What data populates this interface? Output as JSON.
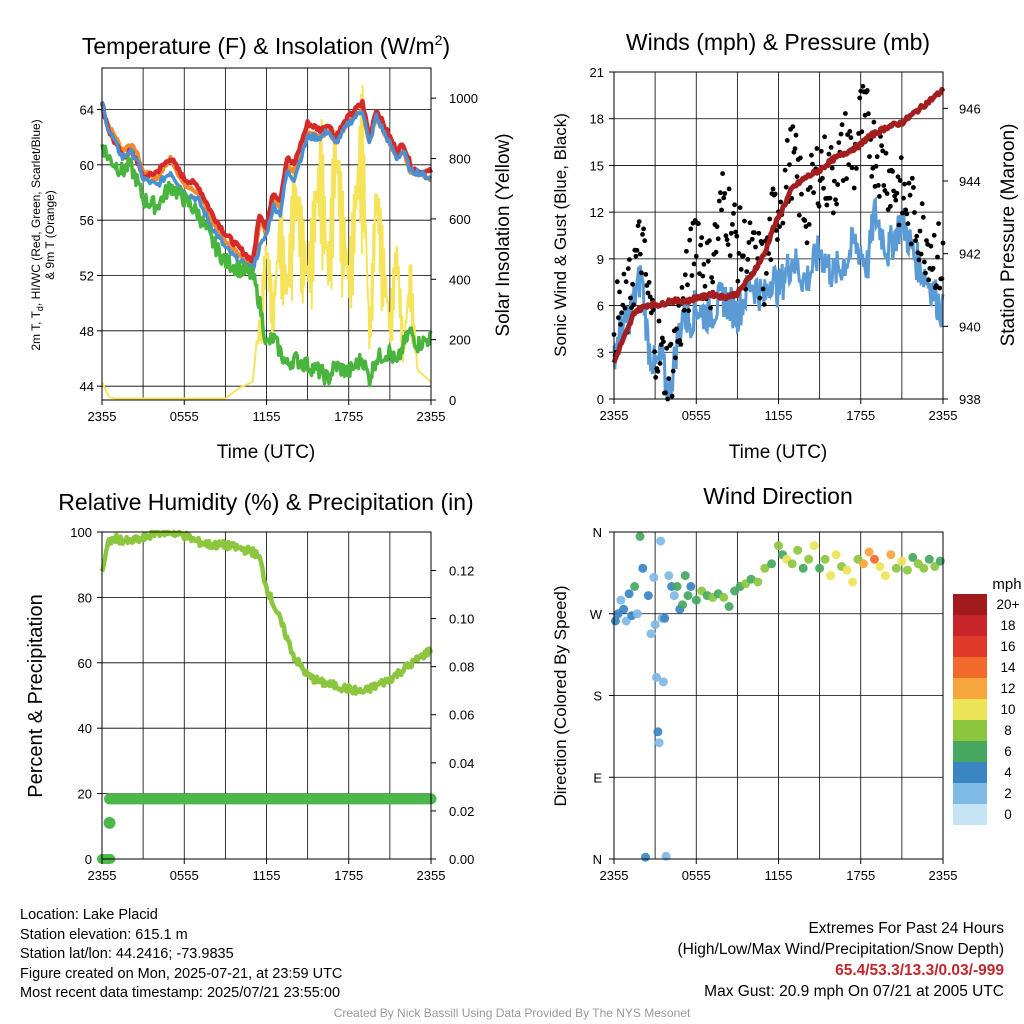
{
  "panels": {
    "temperature": {
      "title": "Temperature (F) & Insolation (W/m",
      "title_sup": "2",
      "title_end": ")",
      "ylabel": "2m T, T",
      "ylabel_sub": "d",
      "ylabel_rest": ", HI/WC (Red, Green, Scarlet/Blue)",
      "ylabel_line2": "& 9m T (Orange)",
      "y2label": "Solar Insolation (Yellow)",
      "xlabel": "Time (UTC)"
    },
    "winds": {
      "title": "Winds (mph) & Pressure (mb)",
      "ylabel": "Sonic Wind & Gust (Blue, Black)",
      "y2label": "Station Pressure (Maroon)",
      "xlabel": "Time (UTC)"
    },
    "humidity": {
      "title": "Relative Humidity (%) & Precipitation (in)",
      "ylabel": "Percent & Precipitation"
    },
    "direction": {
      "title": "Wind Direction",
      "ylabel": "Direction (Colored By Speed)",
      "legend_title": "mph"
    }
  },
  "info": {
    "location": "Location: Lake Placid",
    "elevation": "Station elevation: 615.1 m",
    "latlon": "Station lat/lon: 44.2416; -73.9835",
    "created": "Figure created on Mon, 2025-07-21, at 23:59 UTC",
    "recent": "Most recent data timestamp: 2025/07/21 23:55:00"
  },
  "extremes": {
    "title": "Extremes For Past 24 Hours",
    "subtitle": "(High/Low/Max Wind/Precipitation/Snow Depth)",
    "values": "65.4/53.3/13.3/0.03/-999",
    "gust": "Max Gust: 20.9 mph On 07/21 at 2005 UTC"
  },
  "credit": "Created By Nick Bassill Using Data Provided By The NYS Mesonet",
  "colors": {
    "temp_red": "#d42a2a",
    "dewpoint_green": "#49b43e",
    "heat_index_blue": "#4a90d0",
    "temp_9m_orange": "#f28a2e",
    "insolation_yellow": "#f5e45a",
    "wind_blue": "#5b9bd5",
    "gust_black": "#000000",
    "pressure_maroon": "#a31f1f",
    "rh_green": "#8cc63f",
    "precip_green": "#4cb84c"
  },
  "chart_data": [
    {
      "type": "line",
      "title": "Temperature (F) & Insolation (W/m2)",
      "xlabel": "Time (UTC)",
      "ylabel": "2m T, Td, HI/WC (Red, Green, Scarlet/Blue) & 9m T (Orange)",
      "y2label": "Solar Insolation (Yellow)",
      "x_ticks": [
        "2355",
        "0555",
        "1155",
        "1755",
        "2355"
      ],
      "ylim": [
        43,
        67
      ],
      "y_ticks": [
        44,
        48,
        52,
        56,
        60,
        64
      ],
      "y2lim": [
        0,
        1100
      ],
      "y2_ticks": [
        0,
        200,
        400,
        600,
        800,
        1000
      ],
      "x_hours": [
        0,
        0.5,
        1,
        1.5,
        2,
        2.5,
        3,
        4,
        5,
        6,
        7,
        8,
        9,
        10,
        11,
        11.5,
        12,
        12.5,
        13,
        13.5,
        14,
        15,
        16,
        16.5,
        17,
        18,
        19,
        19.5,
        20,
        21,
        21.5,
        22,
        22.5,
        23,
        24
      ],
      "series": [
        {
          "name": "2m T",
          "axis": "left",
          "values": [
            64.4,
            62.5,
            61.5,
            60.5,
            61.0,
            60.5,
            59.0,
            59.5,
            60.5,
            59.0,
            58.5,
            56.5,
            55.0,
            54.0,
            53.0,
            56.5,
            55.5,
            58.0,
            57.5,
            60.5,
            60.0,
            63.0,
            62.5,
            63.0,
            62.0,
            63.5,
            64.5,
            62.0,
            64.0,
            62.0,
            61.0,
            61.5,
            60.0,
            59.5,
            59.5
          ]
        },
        {
          "name": "9m T",
          "axis": "left",
          "values": [
            64.0,
            62.8,
            62.0,
            61.0,
            61.5,
            61.0,
            59.5,
            59.0,
            60.5,
            58.5,
            58.0,
            56.0,
            54.5,
            53.5,
            52.5,
            56.0,
            55.0,
            57.5,
            57.0,
            60.0,
            59.5,
            62.5,
            62.0,
            62.5,
            61.5,
            63.0,
            64.0,
            61.5,
            63.5,
            61.5,
            60.5,
            61.0,
            59.5,
            59.5,
            59.0
          ]
        },
        {
          "name": "Td",
          "axis": "left",
          "values": [
            61.5,
            60.5,
            60.0,
            59.5,
            60.0,
            59.0,
            57.5,
            57.0,
            58.5,
            57.5,
            56.5,
            54.5,
            53.0,
            52.5,
            52.0,
            50.0,
            47.0,
            47.5,
            46.5,
            45.5,
            46.0,
            45.5,
            45.0,
            44.5,
            45.5,
            45.0,
            46.0,
            44.5,
            46.0,
            46.5,
            45.5,
            47.0,
            48.0,
            47.0,
            47.5
          ]
        },
        {
          "name": "HI/WC",
          "axis": "left",
          "values": [
            64.4,
            62.5,
            61.5,
            60.5,
            61.0,
            60.5,
            59.0,
            58.5,
            59.5,
            58.0,
            57.5,
            55.5,
            54.0,
            53.0,
            52.5,
            54.0,
            55.0,
            57.0,
            56.5,
            59.5,
            59.0,
            62.0,
            62.0,
            62.5,
            61.5,
            63.0,
            64.0,
            61.5,
            63.5,
            61.5,
            60.5,
            61.0,
            59.5,
            59.5,
            59.0
          ]
        },
        {
          "name": "Insolation",
          "axis": "right",
          "values": [
            60,
            10,
            5,
            5,
            5,
            5,
            5,
            5,
            5,
            5,
            5,
            5,
            5,
            40,
            60,
            300,
            600,
            350,
            700,
            420,
            850,
            500,
            950,
            500,
            1000,
            480,
            1080,
            250,
            820,
            300,
            600,
            200,
            500,
            100,
            60
          ]
        }
      ]
    },
    {
      "type": "line",
      "title": "Winds (mph) & Pressure (mb)",
      "xlabel": "Time (UTC)",
      "ylabel": "Sonic Wind & Gust (Blue, Black)",
      "y2label": "Station Pressure (Maroon)",
      "x_ticks": [
        "2355",
        "0555",
        "1155",
        "1755",
        "2355"
      ],
      "ylim": [
        0,
        21
      ],
      "y_ticks": [
        0,
        3,
        6,
        9,
        12,
        15,
        18,
        21
      ],
      "y2lim": [
        938,
        947
      ],
      "y2_ticks": [
        938,
        940,
        942,
        944,
        946
      ],
      "x_hours": [
        0,
        0.5,
        1,
        1.5,
        2,
        2.5,
        3,
        3.5,
        4,
        4.5,
        5,
        5.5,
        6,
        6.5,
        7,
        8,
        9,
        10,
        11,
        11.5,
        12,
        13,
        14,
        15,
        16,
        17,
        17.5,
        18,
        18.5,
        19,
        20,
        21,
        22,
        23,
        24
      ],
      "series": [
        {
          "name": "Sonic Wind",
          "axis": "left",
          "values": [
            3.0,
            4.5,
            5.0,
            6.5,
            8.0,
            3.5,
            2.0,
            2.5,
            0.0,
            3.0,
            5.5,
            5.0,
            6.0,
            5.5,
            5.5,
            6.5,
            5.5,
            7.5,
            6.5,
            8.0,
            7.0,
            9.0,
            7.5,
            9.5,
            8.0,
            9.0,
            10.0,
            9.5,
            8.5,
            12.0,
            9.5,
            11.5,
            9.0,
            7.5,
            5.5
          ]
        },
        {
          "name": "Gust",
          "axis": "left",
          "values": [
            5.0,
            5.5,
            6.0,
            8.5,
            10.0,
            6.5,
            4.0,
            2.5,
            1.5,
            3.5,
            6.0,
            8.0,
            11.5,
            9.0,
            8.0,
            13.0,
            10.0,
            9.0,
            8.0,
            11.0,
            12.5,
            15.5,
            12.0,
            15.0,
            14.0,
            16.5,
            15.0,
            18.0,
            17.5,
            16.0,
            14.5,
            13.0,
            11.5,
            10.0,
            8.5
          ]
        },
        {
          "name": "Pressure",
          "axis": "right",
          "values": [
            939.0,
            939.5,
            939.9,
            940.4,
            940.5,
            940.6,
            940.6,
            940.6,
            940.7,
            940.7,
            940.7,
            940.7,
            940.8,
            940.8,
            940.9,
            940.8,
            940.9,
            941.4,
            942.0,
            942.6,
            943.0,
            943.8,
            944.1,
            944.3,
            944.6,
            944.8,
            944.9,
            945.0,
            945.2,
            945.3,
            945.5,
            945.6,
            945.9,
            946.2,
            946.5
          ]
        }
      ]
    },
    {
      "type": "line",
      "title": "Relative Humidity (%) & Precipitation (in)",
      "ylabel": "Percent & Precipitation",
      "x_ticks": [
        "2355",
        "0555",
        "1155",
        "1755",
        "2355"
      ],
      "ylim": [
        0,
        100
      ],
      "y_ticks": [
        0,
        20,
        40,
        60,
        80,
        100
      ],
      "y2lim": [
        0,
        0.136
      ],
      "y2_ticks": [
        0.0,
        0.02,
        0.04,
        0.06,
        0.08,
        0.1,
        0.12
      ],
      "x_hours": [
        0,
        0.5,
        1,
        2,
        3,
        4,
        5,
        6,
        7,
        8,
        9,
        10,
        11,
        11.5,
        12,
        12.5,
        13,
        14,
        15,
        16,
        17,
        18,
        19,
        20,
        21,
        22,
        23,
        24
      ],
      "series": [
        {
          "name": "RH",
          "axis": "left",
          "values": [
            88,
            97,
            98,
            97,
            98,
            100,
            100,
            99,
            97,
            96,
            96,
            95,
            94,
            92,
            83,
            78,
            73,
            62,
            56,
            54,
            53,
            52,
            51,
            53,
            55,
            58,
            61,
            64
          ]
        },
        {
          "name": "Precipitation",
          "axis": "right",
          "values": [
            0.0,
            0.0,
            0.0,
            0.025,
            0.025,
            0.025,
            0.025,
            0.025,
            0.025,
            0.025,
            0.025,
            0.025,
            0.025,
            0.025,
            0.025,
            0.025,
            0.025,
            0.025,
            0.025,
            0.025,
            0.025,
            0.025,
            0.025,
            0.025,
            0.025,
            0.025,
            0.025,
            0.025
          ]
        }
      ]
    },
    {
      "type": "scatter",
      "title": "Wind Direction",
      "ylabel": "Direction (Colored By Speed)",
      "x_ticks": [
        "2355",
        "0555",
        "1155",
        "1755",
        "2355"
      ],
      "y_ticks": [
        "N",
        "E",
        "S",
        "W",
        "N"
      ],
      "y_tick_degrees": [
        0,
        90,
        180,
        270,
        360
      ],
      "legend": {
        "title": "mph",
        "labels": [
          "20+",
          "18",
          "16",
          "14",
          "12",
          "10",
          "8",
          "6",
          "4",
          "2",
          "0"
        ],
        "colors": [
          "#a11a1c",
          "#c8252a",
          "#e03a2c",
          "#f06a2c",
          "#f6a63c",
          "#ede356",
          "#8cc63f",
          "#46a860",
          "#3a86c2",
          "#7fb9e6",
          "#c6e4f6"
        ]
      },
      "points": [
        {
          "h": 0.1,
          "dir": 262,
          "spd": 4
        },
        {
          "h": 0.3,
          "dir": 270,
          "spd": 3
        },
        {
          "h": 0.5,
          "dir": 285,
          "spd": 2
        },
        {
          "h": 0.7,
          "dir": 275,
          "spd": 4
        },
        {
          "h": 0.9,
          "dir": 262,
          "spd": 2
        },
        {
          "h": 1.1,
          "dir": 292,
          "spd": 4
        },
        {
          "h": 1.3,
          "dir": 268,
          "spd": 3
        },
        {
          "h": 1.5,
          "dir": 300,
          "spd": 5
        },
        {
          "h": 1.7,
          "dir": 270,
          "spd": 2
        },
        {
          "h": 1.9,
          "dir": 355,
          "spd": 6
        },
        {
          "h": 2.1,
          "dir": 320,
          "spd": 4
        },
        {
          "h": 2.3,
          "dir": 2,
          "spd": 4
        },
        {
          "h": 2.5,
          "dir": 290,
          "spd": 3
        },
        {
          "h": 2.7,
          "dir": 248,
          "spd": 2
        },
        {
          "h": 2.9,
          "dir": 310,
          "spd": 1
        },
        {
          "h": 3.0,
          "dir": 258,
          "spd": 2
        },
        {
          "h": 3.1,
          "dir": 200,
          "spd": 1
        },
        {
          "h": 3.2,
          "dir": 140,
          "spd": 3
        },
        {
          "h": 3.3,
          "dir": 128,
          "spd": 2
        },
        {
          "h": 3.4,
          "dir": 350,
          "spd": 1
        },
        {
          "h": 3.5,
          "dir": 265,
          "spd": 2
        },
        {
          "h": 3.6,
          "dir": 195,
          "spd": 1
        },
        {
          "h": 3.7,
          "dir": 265,
          "spd": 4
        },
        {
          "h": 3.8,
          "dir": 3,
          "spd": 1
        },
        {
          "h": 4.0,
          "dir": 312,
          "spd": 1
        },
        {
          "h": 4.2,
          "dir": 300,
          "spd": 3
        },
        {
          "h": 4.4,
          "dir": 290,
          "spd": 2
        },
        {
          "h": 4.6,
          "dir": 300,
          "spd": 5
        },
        {
          "h": 4.8,
          "dir": 275,
          "spd": 4
        },
        {
          "h": 5.0,
          "dir": 280,
          "spd": 6
        },
        {
          "h": 5.2,
          "dir": 312,
          "spd": 5
        },
        {
          "h": 5.4,
          "dir": 290,
          "spd": 6
        },
        {
          "h": 5.6,
          "dir": 300,
          "spd": 4
        },
        {
          "h": 6.0,
          "dir": 285,
          "spd": 6
        },
        {
          "h": 6.4,
          "dir": 295,
          "spd": 7
        },
        {
          "h": 6.8,
          "dir": 290,
          "spd": 6
        },
        {
          "h": 7.2,
          "dir": 288,
          "spd": 8
        },
        {
          "h": 7.6,
          "dir": 292,
          "spd": 6
        },
        {
          "h": 8.0,
          "dir": 288,
          "spd": 7
        },
        {
          "h": 8.4,
          "dir": 278,
          "spd": 6
        },
        {
          "h": 8.8,
          "dir": 295,
          "spd": 6
        },
        {
          "h": 9.2,
          "dir": 300,
          "spd": 5
        },
        {
          "h": 9.6,
          "dir": 303,
          "spd": 7
        },
        {
          "h": 10.0,
          "dir": 308,
          "spd": 6
        },
        {
          "h": 10.5,
          "dir": 305,
          "spd": 8
        },
        {
          "h": 11.0,
          "dir": 320,
          "spd": 7
        },
        {
          "h": 11.5,
          "dir": 325,
          "spd": 6
        },
        {
          "h": 12.0,
          "dir": 345,
          "spd": 8
        },
        {
          "h": 12.3,
          "dir": 335,
          "spd": 6
        },
        {
          "h": 12.6,
          "dir": 330,
          "spd": 9
        },
        {
          "h": 13.0,
          "dir": 325,
          "spd": 7
        },
        {
          "h": 13.4,
          "dir": 340,
          "spd": 8
        },
        {
          "h": 13.8,
          "dir": 320,
          "spd": 6
        },
        {
          "h": 14.2,
          "dir": 330,
          "spd": 7
        },
        {
          "h": 14.6,
          "dir": 345,
          "spd": 9
        },
        {
          "h": 15.0,
          "dir": 320,
          "spd": 6
        },
        {
          "h": 15.4,
          "dir": 330,
          "spd": 8
        },
        {
          "h": 15.8,
          "dir": 312,
          "spd": 10
        },
        {
          "h": 16.2,
          "dir": 335,
          "spd": 9
        },
        {
          "h": 16.6,
          "dir": 322,
          "spd": 7
        },
        {
          "h": 17.0,
          "dir": 318,
          "spd": 10
        },
        {
          "h": 17.4,
          "dir": 305,
          "spd": 9
        },
        {
          "h": 17.8,
          "dir": 330,
          "spd": 8
        },
        {
          "h": 18.2,
          "dir": 325,
          "spd": 11
        },
        {
          "h": 18.6,
          "dir": 338,
          "spd": 12
        },
        {
          "h": 19.0,
          "dir": 330,
          "spd": 13
        },
        {
          "h": 19.4,
          "dir": 322,
          "spd": 10
        },
        {
          "h": 19.8,
          "dir": 312,
          "spd": 9
        },
        {
          "h": 20.2,
          "dir": 335,
          "spd": 12
        },
        {
          "h": 20.6,
          "dir": 320,
          "spd": 8
        },
        {
          "h": 21.0,
          "dir": 328,
          "spd": 10
        },
        {
          "h": 21.4,
          "dir": 318,
          "spd": 7
        },
        {
          "h": 21.8,
          "dir": 332,
          "spd": 6
        },
        {
          "h": 22.2,
          "dir": 325,
          "spd": 8
        },
        {
          "h": 22.6,
          "dir": 320,
          "spd": 7
        },
        {
          "h": 23.0,
          "dir": 330,
          "spd": 6
        },
        {
          "h": 23.4,
          "dir": 322,
          "spd": 7
        },
        {
          "h": 23.8,
          "dir": 328,
          "spd": 6
        }
      ]
    }
  ]
}
